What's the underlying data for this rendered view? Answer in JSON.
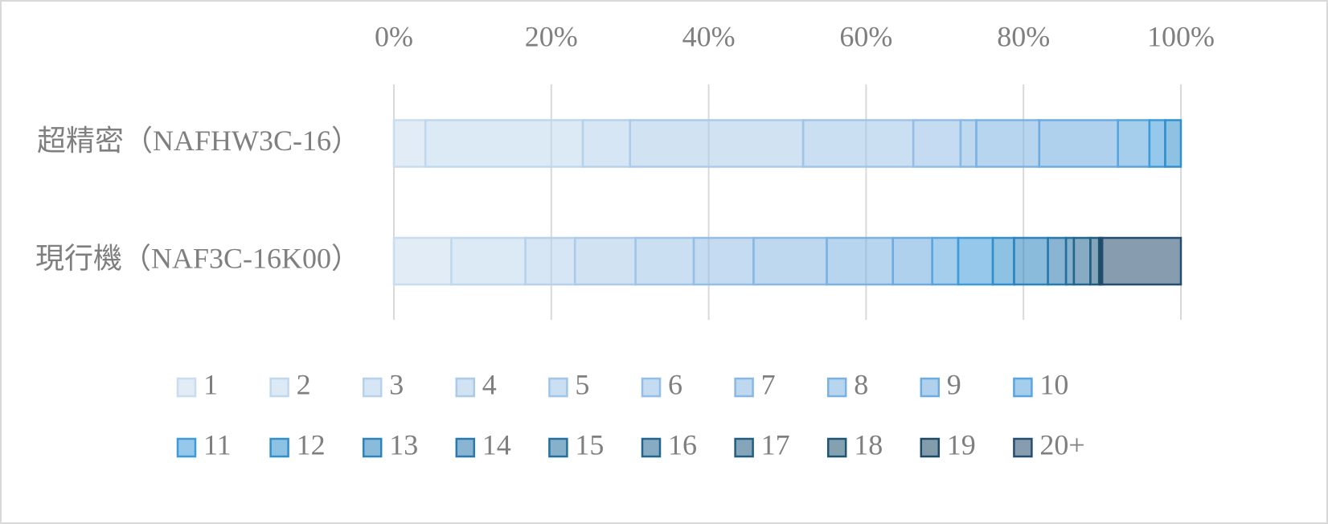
{
  "chart_data": {
    "type": "stacked_bar_horizontal_percent",
    "categories": [
      "超精密（NAFHW3C-16）",
      "現行機（NAF3C-16K00）"
    ],
    "xlim": [
      0,
      100
    ],
    "xticks": [
      {
        "value": 0,
        "label": "0%"
      },
      {
        "value": 20,
        "label": "20%"
      },
      {
        "value": 40,
        "label": "40%"
      },
      {
        "value": 60,
        "label": "60%"
      },
      {
        "value": 80,
        "label": "80%"
      },
      {
        "value": 100,
        "label": "100%"
      }
    ],
    "grid": true,
    "legend": "bottom",
    "series": [
      {
        "name": "1",
        "color": "#c9ddef",
        "values": [
          4,
          7.3
        ]
      },
      {
        "name": "2",
        "color": "#c0d8ed",
        "values": [
          20,
          9.4
        ]
      },
      {
        "name": "3",
        "color": "#b6d2eb",
        "values": [
          6,
          6.3
        ]
      },
      {
        "name": "4",
        "color": "#abcbe9",
        "values": [
          22,
          7.7
        ]
      },
      {
        "name": "5",
        "color": "#a0c5e7",
        "values": [
          14,
          7.4
        ]
      },
      {
        "name": "6",
        "color": "#94bee5",
        "values": [
          6,
          7.6
        ]
      },
      {
        "name": "7",
        "color": "#88b8e3",
        "values": [
          2,
          9.3
        ]
      },
      {
        "name": "8",
        "color": "#7cb2e2",
        "values": [
          8,
          8.4
        ]
      },
      {
        "name": "9",
        "color": "#6eace0",
        "values": [
          10,
          5.0
        ]
      },
      {
        "name": "10",
        "color": "#5ba5de",
        "values": [
          4,
          3.3
        ]
      },
      {
        "name": "11",
        "color": "#3e9ad8",
        "values": [
          2,
          4.4
        ]
      },
      {
        "name": "12",
        "color": "#308fcc",
        "values": [
          2,
          2.7
        ]
      },
      {
        "name": "13",
        "color": "#2b84bd",
        "values": [
          0,
          4.3
        ]
      },
      {
        "name": "14",
        "color": "#2879ad",
        "values": [
          0,
          2.3
        ]
      },
      {
        "name": "15",
        "color": "#256f9e",
        "values": [
          0,
          1.0
        ]
      },
      {
        "name": "16",
        "color": "#22668f",
        "values": [
          0,
          2.1
        ]
      },
      {
        "name": "17",
        "color": "#215d81",
        "values": [
          0,
          1.1
        ]
      },
      {
        "name": "18",
        "color": "#1f5473",
        "values": [
          0,
          0.2
        ]
      },
      {
        "name": "19",
        "color": "#1d4a66",
        "values": [
          0,
          0.2
        ]
      },
      {
        "name": "20+",
        "color": "#254d6e",
        "values": [
          0,
          10.0
        ]
      }
    ]
  }
}
